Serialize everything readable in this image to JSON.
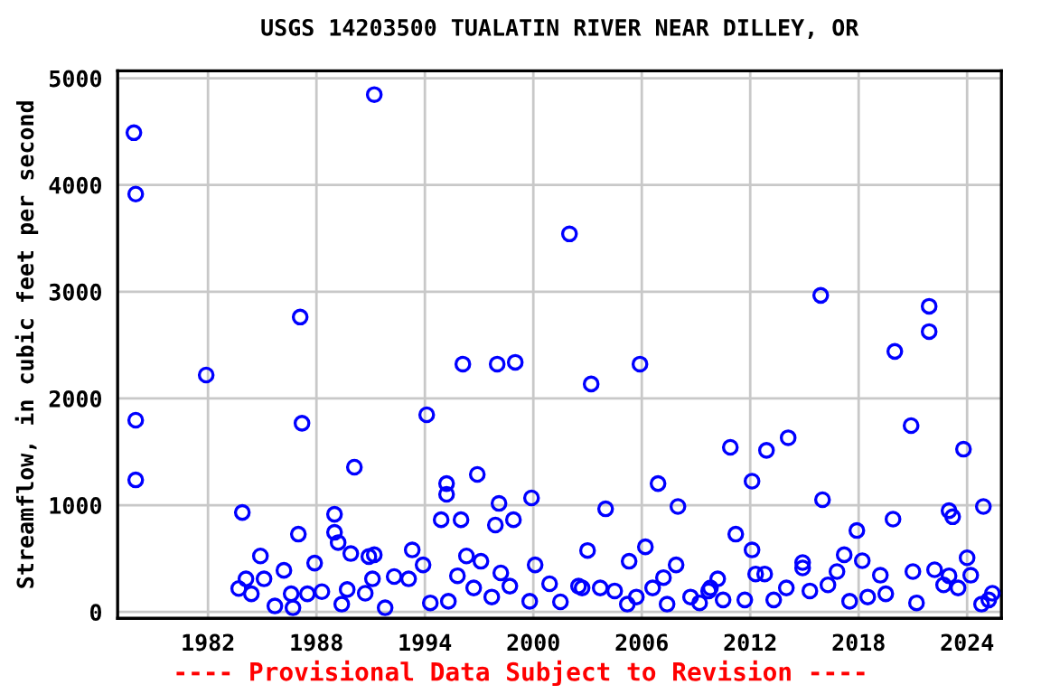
{
  "chart_data": {
    "type": "scatter",
    "title": "USGS 14203500 TUALATIN RIVER NEAR DILLEY, OR",
    "ylabel": "Streamflow, in cubic feet per second",
    "annotations": [
      "---- Provisional Data Subject to Revision ----"
    ],
    "xlim": [
      1977.0,
      2025.9
    ],
    "ylim": [
      -60,
      5070
    ],
    "xticks": [
      1982,
      1988,
      1994,
      2000,
      2006,
      2012,
      2018,
      2024
    ],
    "yticks": [
      0,
      1000,
      2000,
      3000,
      4000,
      5000
    ],
    "grid": true,
    "marker": "circle",
    "series": [
      {
        "color": "#0000ff",
        "x": [
          1977.9,
          1978.0,
          1978.0,
          1978.0,
          1981.9,
          1991.2,
          1987.1,
          1987.2,
          1990.1,
          1983.9,
          1989.0,
          1987.0,
          1989.0,
          1989.2,
          1989.9,
          1990.9,
          1991.2,
          1984.9,
          1986.2,
          1987.9,
          1993.3,
          1983.7,
          1984.1,
          1985.1,
          1984.4,
          1985.7,
          1986.7,
          1986.6,
          1987.5,
          1988.3,
          1989.4,
          1989.7,
          1990.7,
          1991.1,
          1991.8,
          1992.3,
          1993.1,
          1994.1,
          2002.0,
          1996.1,
          1998.0,
          1999.0,
          2005.9,
          2003.2,
          1996.9,
          1995.2,
          1995.2,
          1998.1,
          1999.9,
          1994.9,
          1996.0,
          1997.9,
          1998.9,
          2004.0,
          2006.9,
          2008.0,
          1993.9,
          1996.3,
          1997.1,
          1995.8,
          1998.2,
          2000.1,
          2003.0,
          2005.3,
          2006.2,
          2007.9,
          2007.2,
          2000.9,
          2002.5,
          1996.7,
          1998.7,
          1994.3,
          1995.3,
          1997.7,
          1999.8,
          2001.5,
          2002.7,
          2003.7,
          2004.5,
          2005.2,
          2005.7,
          2006.6,
          2007.4,
          2008.7,
          2009.7,
          2009.2,
          2015.9,
          2021.9,
          2021.9,
          2020.0,
          2020.9,
          2010.9,
          2012.9,
          2014.1,
          2023.8,
          2012.1,
          2016.0,
          2024.9,
          2023.0,
          2023.2,
          2011.2,
          2017.9,
          2019.9,
          2012.1,
          2014.9,
          2014.9,
          2017.2,
          2018.2,
          2024.0,
          2012.3,
          2012.8,
          2016.8,
          2019.2,
          2021.0,
          2022.2,
          2023.0,
          2024.2,
          2010.2,
          2025.4,
          2009.8,
          2010.5,
          2011.7,
          2013.3,
          2014.0,
          2015.3,
          2016.3,
          2017.5,
          2018.5,
          2019.5,
          2021.2,
          2022.7,
          2023.5,
          2024.8,
          2025.2
        ],
        "values": [
          4490,
          3915,
          1797,
          1237,
          2220,
          4847,
          2763,
          1768,
          1356,
          932,
          915,
          729,
          746,
          650,
          547,
          519,
          536,
          525,
          390,
          458,
          581,
          220,
          310,
          310,
          170,
          56,
          39,
          170,
          170,
          190,
          73,
          210,
          175,
          310,
          39,
          332,
          310,
          1847,
          3542,
          2322,
          2322,
          2339,
          2322,
          2136,
          1288,
          1203,
          1102,
          1017,
          1068,
          864,
          864,
          814,
          864,
          966,
          1203,
          988,
          441,
          525,
          475,
          339,
          366,
          441,
          576,
          475,
          610,
          441,
          322,
          264,
          242,
          225,
          242,
          85,
          100,
          140,
          100,
          95,
          225,
          225,
          197,
          73,
          140,
          225,
          73,
          140,
          197,
          85,
          2966,
          2864,
          2627,
          2441,
          1746,
          1542,
          1514,
          1632,
          1525,
          1225,
          1051,
          988,
          949,
          892,
          729,
          763,
          869,
          581,
          463,
          412,
          536,
          480,
          508,
          356,
          356,
          378,
          344,
          378,
          395,
          339,
          344,
          310,
          175,
          225,
          113,
          113,
          113,
          225,
          197,
          254,
          100,
          140,
          170,
          85,
          254,
          225,
          73,
          113
        ]
      }
    ]
  }
}
